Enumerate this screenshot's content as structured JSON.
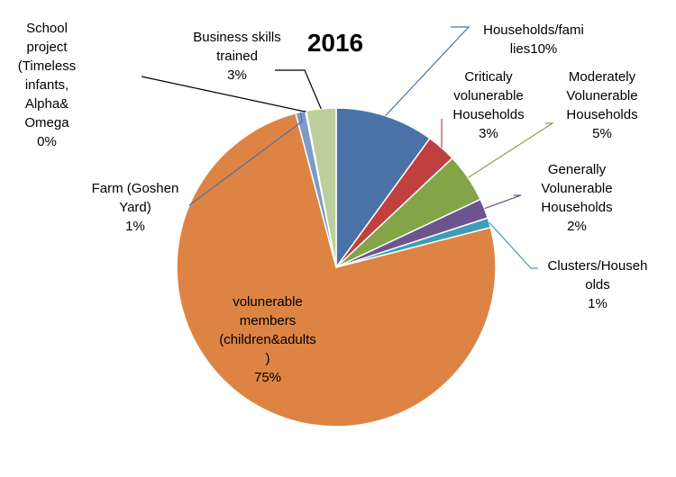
{
  "chart_data": {
    "type": "pie",
    "title": "2016",
    "slices": [
      {
        "label": "Households/families",
        "value": 10,
        "label_lines": [
          "Households/fami",
          "lies10%"
        ],
        "color": "#4a72a6"
      },
      {
        "label": "Criticaly volunerable Households",
        "value": 3,
        "label_lines": [
          "Criticaly",
          "volunerable",
          "Households",
          "3%"
        ],
        "color": "#c0403f"
      },
      {
        "label": "Moderately Volunerable Households",
        "value": 5,
        "label_lines": [
          "Moderately",
          "Volunerable",
          "Households",
          "5%"
        ],
        "color": "#83a447"
      },
      {
        "label": "Generally Volunerable Households",
        "value": 2,
        "label_lines": [
          "Generally",
          "Volunerable",
          "Households",
          "2%"
        ],
        "color": "#6d548f"
      },
      {
        "label": "Clusters/Households",
        "value": 1,
        "label_lines": [
          "Clusters/Househ",
          "olds",
          "1%"
        ],
        "color": "#3f9cb5"
      },
      {
        "label": "volunerable members (children&adults)",
        "value": 75,
        "label_lines": [
          "volunerable",
          "members",
          "(children&adults",
          ")",
          "75%"
        ],
        "color": "#dd8444"
      },
      {
        "label": "Farm (Goshen Yard)",
        "value": 1,
        "label_lines": [
          "Farm (Goshen",
          "Yard)",
          "1%"
        ],
        "color": "#7d9bc7"
      },
      {
        "label": "School project (Timeless infants, Alpha& Omega",
        "value": 0,
        "label_lines": [
          "School",
          "project",
          "(Timeless",
          "infants,",
          "Alpha&",
          "Omega",
          "0%"
        ],
        "color": "#a6afd3"
      },
      {
        "label": "Business skills trained",
        "value": 3,
        "label_lines": [
          "Business skills",
          "trained",
          "3%"
        ],
        "color": "#bccf9a"
      }
    ],
    "legend": "none"
  }
}
